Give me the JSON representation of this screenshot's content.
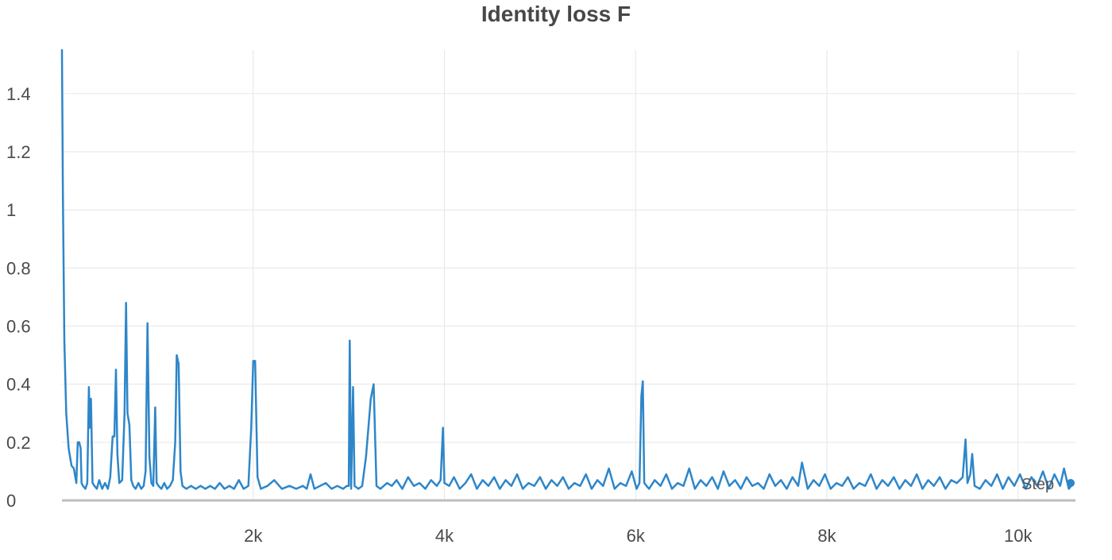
{
  "chart_data": {
    "type": "line",
    "title": "Identity loss F",
    "xlabel": "Step",
    "ylabel": "",
    "xlim": [
      0,
      10600
    ],
    "ylim": [
      0,
      1.55
    ],
    "grid": true,
    "x_ticks": [
      {
        "value": 2000,
        "label": "2k"
      },
      {
        "value": 4000,
        "label": "4k"
      },
      {
        "value": 6000,
        "label": "6k"
      },
      {
        "value": 8000,
        "label": "8k"
      },
      {
        "value": 10000,
        "label": "10k"
      }
    ],
    "y_ticks": [
      {
        "value": 0,
        "label": "0"
      },
      {
        "value": 0.2,
        "label": "0.2"
      },
      {
        "value": 0.4,
        "label": "0.4"
      },
      {
        "value": 0.6,
        "label": "0.6"
      },
      {
        "value": 0.8,
        "label": "0.8"
      },
      {
        "value": 1,
        "label": "1"
      },
      {
        "value": 1.2,
        "label": "1.2"
      },
      {
        "value": 1.4,
        "label": "1.4"
      }
    ],
    "series": [
      {
        "color": "#2e86c9",
        "points": [
          [
            0,
            1.55
          ],
          [
            10,
            1.05
          ],
          [
            25,
            0.55
          ],
          [
            45,
            0.3
          ],
          [
            70,
            0.18
          ],
          [
            100,
            0.12
          ],
          [
            125,
            0.11
          ],
          [
            150,
            0.06
          ],
          [
            165,
            0.2
          ],
          [
            180,
            0.2
          ],
          [
            195,
            0.18
          ],
          [
            205,
            0.06
          ],
          [
            220,
            0.05
          ],
          [
            245,
            0.04
          ],
          [
            265,
            0.06
          ],
          [
            282,
            0.39
          ],
          [
            292,
            0.25
          ],
          [
            303,
            0.35
          ],
          [
            320,
            0.06
          ],
          [
            340,
            0.05
          ],
          [
            365,
            0.04
          ],
          [
            390,
            0.07
          ],
          [
            420,
            0.04
          ],
          [
            450,
            0.06
          ],
          [
            480,
            0.04
          ],
          [
            505,
            0.08
          ],
          [
            530,
            0.22
          ],
          [
            548,
            0.22
          ],
          [
            565,
            0.45
          ],
          [
            580,
            0.16
          ],
          [
            600,
            0.06
          ],
          [
            630,
            0.07
          ],
          [
            655,
            0.3
          ],
          [
            670,
            0.68
          ],
          [
            685,
            0.3
          ],
          [
            705,
            0.26
          ],
          [
            725,
            0.07
          ],
          [
            745,
            0.05
          ],
          [
            770,
            0.04
          ],
          [
            800,
            0.06
          ],
          [
            830,
            0.04
          ],
          [
            855,
            0.05
          ],
          [
            875,
            0.1
          ],
          [
            895,
            0.61
          ],
          [
            915,
            0.15
          ],
          [
            935,
            0.06
          ],
          [
            955,
            0.05
          ],
          [
            975,
            0.32
          ],
          [
            990,
            0.06
          ],
          [
            1010,
            0.05
          ],
          [
            1040,
            0.04
          ],
          [
            1070,
            0.06
          ],
          [
            1100,
            0.04
          ],
          [
            1130,
            0.05
          ],
          [
            1160,
            0.07
          ],
          [
            1185,
            0.2
          ],
          [
            1200,
            0.5
          ],
          [
            1220,
            0.47
          ],
          [
            1240,
            0.1
          ],
          [
            1260,
            0.05
          ],
          [
            1300,
            0.04
          ],
          [
            1350,
            0.05
          ],
          [
            1400,
            0.04
          ],
          [
            1450,
            0.05
          ],
          [
            1500,
            0.04
          ],
          [
            1550,
            0.05
          ],
          [
            1600,
            0.04
          ],
          [
            1650,
            0.06
          ],
          [
            1700,
            0.04
          ],
          [
            1750,
            0.05
          ],
          [
            1800,
            0.04
          ],
          [
            1850,
            0.07
          ],
          [
            1900,
            0.04
          ],
          [
            1950,
            0.05
          ],
          [
            1980,
            0.25
          ],
          [
            2000,
            0.48
          ],
          [
            2020,
            0.48
          ],
          [
            2045,
            0.08
          ],
          [
            2080,
            0.04
          ],
          [
            2150,
            0.05
          ],
          [
            2220,
            0.07
          ],
          [
            2300,
            0.04
          ],
          [
            2380,
            0.05
          ],
          [
            2450,
            0.04
          ],
          [
            2520,
            0.05
          ],
          [
            2560,
            0.04
          ],
          [
            2600,
            0.09
          ],
          [
            2640,
            0.04
          ],
          [
            2700,
            0.05
          ],
          [
            2760,
            0.06
          ],
          [
            2820,
            0.04
          ],
          [
            2880,
            0.05
          ],
          [
            2940,
            0.04
          ],
          [
            2980,
            0.05
          ],
          [
            3000,
            0.05
          ],
          [
            3010,
            0.55
          ],
          [
            3025,
            0.04
          ],
          [
            3045,
            0.39
          ],
          [
            3060,
            0.05
          ],
          [
            3100,
            0.04
          ],
          [
            3140,
            0.05
          ],
          [
            3180,
            0.15
          ],
          [
            3230,
            0.35
          ],
          [
            3260,
            0.4
          ],
          [
            3290,
            0.05
          ],
          [
            3330,
            0.04
          ],
          [
            3400,
            0.06
          ],
          [
            3450,
            0.05
          ],
          [
            3500,
            0.07
          ],
          [
            3560,
            0.04
          ],
          [
            3620,
            0.08
          ],
          [
            3680,
            0.05
          ],
          [
            3740,
            0.06
          ],
          [
            3800,
            0.04
          ],
          [
            3860,
            0.07
          ],
          [
            3920,
            0.05
          ],
          [
            3960,
            0.07
          ],
          [
            3985,
            0.25
          ],
          [
            4000,
            0.06
          ],
          [
            4050,
            0.05
          ],
          [
            4100,
            0.08
          ],
          [
            4160,
            0.04
          ],
          [
            4220,
            0.06
          ],
          [
            4280,
            0.09
          ],
          [
            4340,
            0.04
          ],
          [
            4400,
            0.07
          ],
          [
            4460,
            0.05
          ],
          [
            4520,
            0.08
          ],
          [
            4580,
            0.04
          ],
          [
            4640,
            0.07
          ],
          [
            4700,
            0.05
          ],
          [
            4760,
            0.09
          ],
          [
            4820,
            0.04
          ],
          [
            4880,
            0.06
          ],
          [
            4940,
            0.05
          ],
          [
            5000,
            0.08
          ],
          [
            5060,
            0.04
          ],
          [
            5120,
            0.07
          ],
          [
            5180,
            0.05
          ],
          [
            5240,
            0.08
          ],
          [
            5300,
            0.04
          ],
          [
            5360,
            0.06
          ],
          [
            5420,
            0.05
          ],
          [
            5480,
            0.09
          ],
          [
            5540,
            0.04
          ],
          [
            5600,
            0.07
          ],
          [
            5660,
            0.05
          ],
          [
            5720,
            0.11
          ],
          [
            5780,
            0.04
          ],
          [
            5840,
            0.06
          ],
          [
            5900,
            0.05
          ],
          [
            5960,
            0.1
          ],
          [
            6010,
            0.04
          ],
          [
            6040,
            0.06
          ],
          [
            6060,
            0.36
          ],
          [
            6075,
            0.41
          ],
          [
            6090,
            0.06
          ],
          [
            6140,
            0.04
          ],
          [
            6200,
            0.07
          ],
          [
            6260,
            0.05
          ],
          [
            6320,
            0.09
          ],
          [
            6380,
            0.04
          ],
          [
            6440,
            0.06
          ],
          [
            6500,
            0.05
          ],
          [
            6560,
            0.11
          ],
          [
            6620,
            0.04
          ],
          [
            6680,
            0.07
          ],
          [
            6740,
            0.05
          ],
          [
            6800,
            0.08
          ],
          [
            6860,
            0.04
          ],
          [
            6920,
            0.1
          ],
          [
            6980,
            0.05
          ],
          [
            7040,
            0.07
          ],
          [
            7100,
            0.04
          ],
          [
            7160,
            0.08
          ],
          [
            7220,
            0.05
          ],
          [
            7280,
            0.06
          ],
          [
            7340,
            0.04
          ],
          [
            7400,
            0.09
          ],
          [
            7460,
            0.05
          ],
          [
            7520,
            0.07
          ],
          [
            7580,
            0.04
          ],
          [
            7640,
            0.08
          ],
          [
            7700,
            0.05
          ],
          [
            7740,
            0.13
          ],
          [
            7800,
            0.04
          ],
          [
            7860,
            0.07
          ],
          [
            7920,
            0.05
          ],
          [
            7980,
            0.09
          ],
          [
            8040,
            0.04
          ],
          [
            8100,
            0.06
          ],
          [
            8160,
            0.05
          ],
          [
            8220,
            0.08
          ],
          [
            8280,
            0.04
          ],
          [
            8340,
            0.06
          ],
          [
            8400,
            0.05
          ],
          [
            8460,
            0.09
          ],
          [
            8520,
            0.04
          ],
          [
            8580,
            0.07
          ],
          [
            8640,
            0.05
          ],
          [
            8700,
            0.08
          ],
          [
            8760,
            0.04
          ],
          [
            8820,
            0.07
          ],
          [
            8880,
            0.05
          ],
          [
            8940,
            0.09
          ],
          [
            9000,
            0.04
          ],
          [
            9060,
            0.07
          ],
          [
            9120,
            0.05
          ],
          [
            9180,
            0.08
          ],
          [
            9240,
            0.04
          ],
          [
            9300,
            0.07
          ],
          [
            9360,
            0.06
          ],
          [
            9420,
            0.08
          ],
          [
            9450,
            0.21
          ],
          [
            9470,
            0.06
          ],
          [
            9500,
            0.09
          ],
          [
            9520,
            0.16
          ],
          [
            9545,
            0.05
          ],
          [
            9600,
            0.04
          ],
          [
            9660,
            0.07
          ],
          [
            9720,
            0.05
          ],
          [
            9780,
            0.09
          ],
          [
            9840,
            0.04
          ],
          [
            9900,
            0.08
          ],
          [
            9960,
            0.05
          ],
          [
            10020,
            0.09
          ],
          [
            10080,
            0.04
          ],
          [
            10140,
            0.08
          ],
          [
            10200,
            0.05
          ],
          [
            10260,
            0.1
          ],
          [
            10320,
            0.04
          ],
          [
            10380,
            0.09
          ],
          [
            10440,
            0.05
          ],
          [
            10480,
            0.11
          ],
          [
            10530,
            0.04
          ],
          [
            10580,
            0.06
          ]
        ]
      }
    ]
  }
}
